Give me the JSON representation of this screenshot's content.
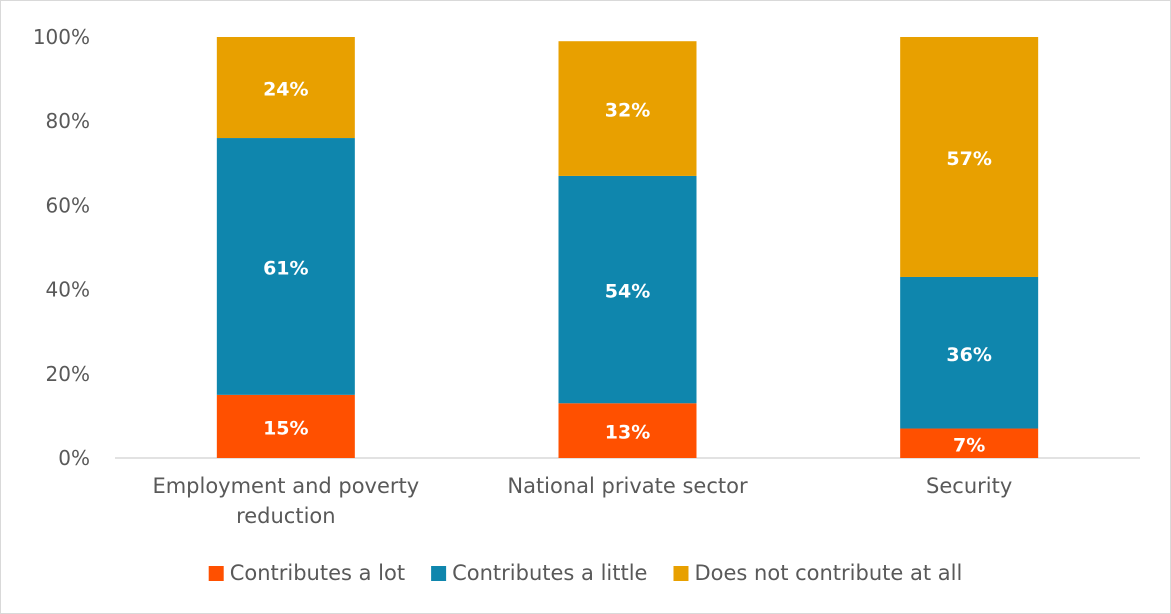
{
  "chart_data": {
    "type": "bar",
    "stacked": true,
    "percent_stacked": true,
    "categories": [
      "Employment and poverty reduction",
      "National private sector",
      "Security"
    ],
    "category_label_lines": [
      [
        "Employment and poverty",
        "reduction"
      ],
      [
        "National private sector"
      ],
      [
        "Security"
      ]
    ],
    "series": [
      {
        "name": "Contributes a lot",
        "values": [
          15,
          13,
          7
        ],
        "labels": [
          "15%",
          "13%",
          "7%"
        ],
        "color": "#ff5000"
      },
      {
        "name": "Contributes a little",
        "values": [
          61,
          54,
          36
        ],
        "labels": [
          "61%",
          "54%",
          "36%"
        ],
        "color": "#0f86ad"
      },
      {
        "name": "Does not contribute at all",
        "values": [
          24,
          32,
          57
        ],
        "labels": [
          "24%",
          "32%",
          "57%"
        ],
        "color": "#e8a000"
      }
    ],
    "ylim": [
      0,
      100
    ],
    "yticks": [
      "0%",
      "20%",
      "40%",
      "60%",
      "80%",
      "100%"
    ],
    "title": "",
    "xlabel": "",
    "ylabel": "",
    "grid": false,
    "legend_position": "bottom"
  }
}
